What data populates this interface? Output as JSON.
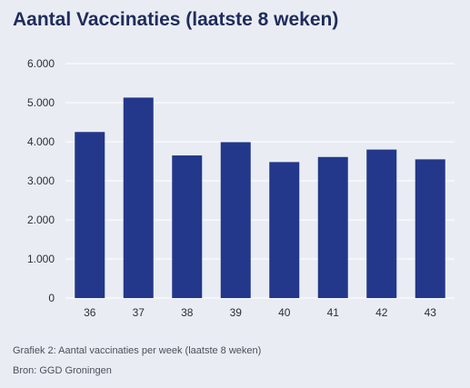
{
  "title": "Aantal Vaccinaties (laatste 8 weken)",
  "caption": "Grafiek 2: Aantal vaccinaties per week (laatste 8 weken)",
  "source": "Bron: GGD Groningen",
  "colors": {
    "background": "#e9edf3",
    "bar": "#23388a",
    "grid": "#ffffff",
    "title": "#1f2c5c"
  },
  "chart_data": {
    "type": "bar",
    "categories": [
      "36",
      "37",
      "38",
      "39",
      "40",
      "41",
      "42",
      "43"
    ],
    "values": [
      4250,
      5130,
      3650,
      3990,
      3480,
      3610,
      3800,
      3550
    ],
    "ylim": [
      0,
      6000
    ],
    "yticks": [
      0,
      1000,
      2000,
      3000,
      4000,
      5000,
      6000
    ],
    "ytick_labels": [
      "0",
      "1.000",
      "2.000",
      "3.000",
      "4.000",
      "5.000",
      "6.000"
    ],
    "grid": true,
    "legend": "none"
  }
}
